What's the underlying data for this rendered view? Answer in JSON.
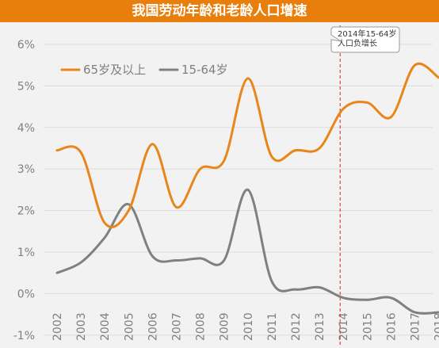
{
  "chart_data": {
    "type": "line",
    "title": "我国劳动年龄和老龄人口增速",
    "xlabel": "",
    "ylabel": "",
    "categories": [
      "2002",
      "2003",
      "2004",
      "2005",
      "2006",
      "2007",
      "2008",
      "2009",
      "2010",
      "2011",
      "2012",
      "2013",
      "2014",
      "2015",
      "2016",
      "2017",
      "2018"
    ],
    "ylim": [
      -1,
      6
    ],
    "yticks": [
      "-1%",
      "0%",
      "1%",
      "2%",
      "3%",
      "4%",
      "5%",
      "6%"
    ],
    "ytick_values": [
      -1,
      0,
      1,
      2,
      3,
      4,
      5,
      6
    ],
    "grid": true,
    "legend_position": "top-left",
    "series": [
      {
        "name": "65岁及以上",
        "color": "#e8861a",
        "values": [
          3.45,
          3.4,
          1.7,
          2.0,
          3.6,
          2.08,
          3.0,
          3.2,
          5.18,
          3.3,
          3.45,
          3.5,
          4.45,
          4.6,
          4.25,
          5.5,
          5.2
        ]
      },
      {
        "name": "15-64岁",
        "color": "#808080",
        "values": [
          0.5,
          0.75,
          1.35,
          2.15,
          0.9,
          0.8,
          0.85,
          0.8,
          2.5,
          0.3,
          0.1,
          0.15,
          -0.1,
          -0.15,
          -0.1,
          -0.45,
          -0.45
        ]
      }
    ],
    "annotation": {
      "text_lines": [
        "2014年15-64岁",
        "人口负增长"
      ],
      "at_category": "2014",
      "line_color": "#e02020"
    }
  }
}
